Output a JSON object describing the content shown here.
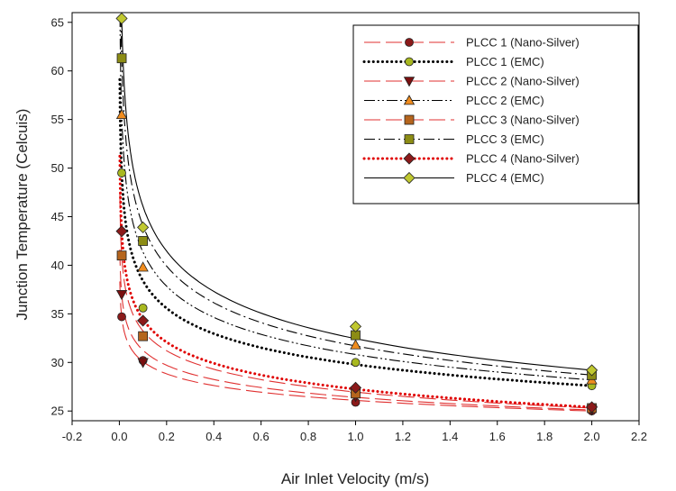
{
  "chart_data": {
    "type": "scatter",
    "title": "",
    "xlabel": "Air Inlet Velocity (m/s)",
    "ylabel": "Junction Temperature (Celcuis)",
    "xlim": [
      -0.2,
      2.2
    ],
    "ylim": [
      24,
      66
    ],
    "x_ticks": [
      "-0.2",
      "0.0",
      "0.2",
      "0.4",
      "0.6",
      "0.8",
      "1.0",
      "1.2",
      "1.4",
      "1.6",
      "1.8",
      "2.0",
      "2.2"
    ],
    "y_ticks": [
      "25",
      "30",
      "35",
      "40",
      "45",
      "50",
      "55",
      "60",
      "65"
    ],
    "grid": false,
    "legend_position": "top-right",
    "x": [
      0.01,
      0.1,
      1.0,
      2.0
    ],
    "series": [
      {
        "name": "PLCC 1 (Nano-Silver)",
        "marker": "circle",
        "marker_color": "#8b1a1a",
        "line_color": "#e03030",
        "line_style": "long-dash",
        "values": [
          34.7,
          30.2,
          25.9,
          25.0
        ]
      },
      {
        "name": "PLCC 1 (EMC)",
        "marker": "circle",
        "marker_color": "#a8b820",
        "line_color": "#000000",
        "line_style": "dotted-bold",
        "values": [
          49.5,
          35.6,
          30.0,
          27.6
        ]
      },
      {
        "name": "PLCC 2 (Nano-Silver)",
        "marker": "triangle-down",
        "marker_color": "#7a1010",
        "line_color": "#e03030",
        "line_style": "long-dash",
        "values": [
          37.0,
          30.0,
          26.5,
          25.1
        ]
      },
      {
        "name": "PLCC 2 (EMC)",
        "marker": "triangle-up",
        "marker_color": "#f08c1e",
        "line_color": "#000000",
        "line_style": "dash-dot-dot",
        "values": [
          55.5,
          39.8,
          31.8,
          28.2
        ]
      },
      {
        "name": "PLCC 3 (Nano-Silver)",
        "marker": "square",
        "marker_color": "#b5651d",
        "line_color": "#e03030",
        "line_style": "long-dash",
        "values": [
          41.0,
          32.7,
          26.8,
          25.3
        ]
      },
      {
        "name": "PLCC 3 (EMC)",
        "marker": "square",
        "marker_color": "#8c8c14",
        "line_color": "#000000",
        "line_style": "dash-dot",
        "values": [
          61.3,
          42.5,
          32.8,
          28.7
        ]
      },
      {
        "name": "PLCC 4 (Nano-Silver)",
        "marker": "diamond",
        "marker_color": "#8b1a1a",
        "line_color": "#e00000",
        "line_style": "dotted-bold",
        "values": [
          43.5,
          34.3,
          27.4,
          25.4
        ]
      },
      {
        "name": "PLCC 4 (EMC)",
        "marker": "diamond",
        "marker_color": "#c0c830",
        "line_color": "#000000",
        "line_style": "solid",
        "values": [
          65.4,
          43.9,
          33.7,
          29.2
        ]
      }
    ]
  }
}
